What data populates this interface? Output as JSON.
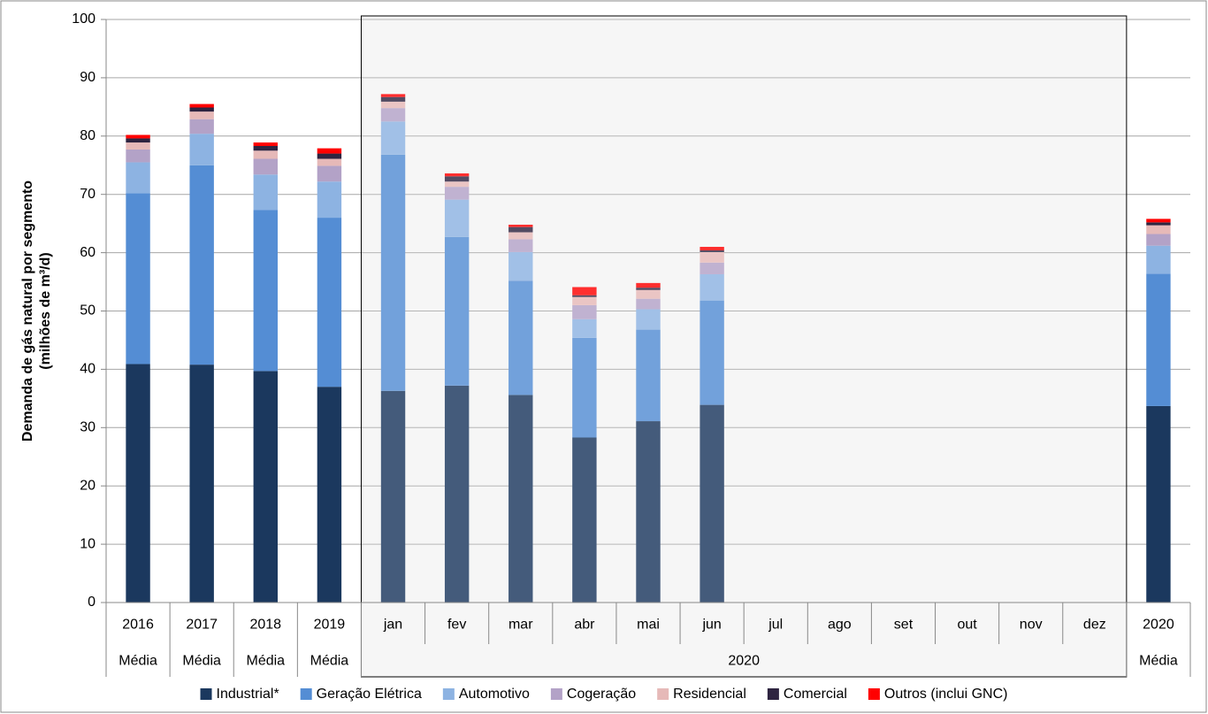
{
  "chart_data": {
    "type": "stacked_bar",
    "ylabel": [
      "Demanda de gás natural por segmento",
      "(milhões de m³/d)"
    ],
    "categories": [
      "2016",
      "2017",
      "2018",
      "2019",
      "jan",
      "fev",
      "mar",
      "abr",
      "mai",
      "jun",
      "jul",
      "ago",
      "set",
      "out",
      "nov",
      "dez",
      "2020"
    ],
    "group_labels": [
      "Média",
      "Média",
      "Média",
      "Média",
      "2020",
      null,
      null,
      null,
      null,
      null,
      null,
      null,
      null,
      null,
      null,
      null,
      "Média"
    ],
    "series": [
      {
        "name": "Industrial*",
        "color": "#1b385e",
        "values": [
          40.9,
          40.8,
          39.7,
          37.0,
          36.3,
          37.2,
          35.6,
          28.3,
          31.1,
          33.9,
          null,
          null,
          null,
          null,
          null,
          null,
          33.7
        ]
      },
      {
        "name": "Geração Elétrica",
        "color": "#548dd4",
        "values": [
          29.3,
          34.2,
          27.6,
          29.0,
          40.5,
          25.5,
          19.6,
          17.1,
          15.7,
          17.9,
          null,
          null,
          null,
          null,
          null,
          null,
          22.7
        ]
      },
      {
        "name": "Automotivo",
        "color": "#8db3e2",
        "values": [
          5.3,
          5.4,
          6.1,
          6.2,
          5.7,
          6.4,
          4.9,
          3.2,
          3.5,
          4.5,
          null,
          null,
          null,
          null,
          null,
          null,
          4.8
        ]
      },
      {
        "name": "Cogeração",
        "color": "#b3a2c7",
        "values": [
          2.2,
          2.5,
          2.7,
          2.7,
          2.3,
          2.2,
          2.2,
          2.4,
          1.8,
          2.0,
          null,
          null,
          null,
          null,
          null,
          null,
          2.0
        ]
      },
      {
        "name": "Residencial",
        "color": "#e6b9b8",
        "values": [
          1.2,
          1.3,
          1.4,
          1.2,
          1.1,
          0.9,
          1.2,
          1.4,
          1.5,
          1.8,
          null,
          null,
          null,
          null,
          null,
          null,
          1.5
        ]
      },
      {
        "name": "Comercial",
        "color": "#2e2440",
        "values": [
          0.7,
          0.7,
          0.8,
          0.9,
          0.8,
          0.9,
          0.9,
          0.3,
          0.4,
          0.3,
          null,
          null,
          null,
          null,
          null,
          null,
          0.5
        ]
      },
      {
        "name": "Outros (inclui GNC)",
        "color": "#ff0000",
        "values": [
          0.6,
          0.6,
          0.6,
          0.9,
          0.5,
          0.5,
          0.4,
          1.4,
          0.8,
          0.6,
          null,
          null,
          null,
          null,
          null,
          null,
          0.6
        ]
      }
    ],
    "ylim": [
      0,
      100
    ],
    "yticks": [
      0,
      10,
      20,
      30,
      40,
      50,
      60,
      70,
      80,
      90,
      100
    ],
    "grid": true,
    "legend": "bottom"
  }
}
